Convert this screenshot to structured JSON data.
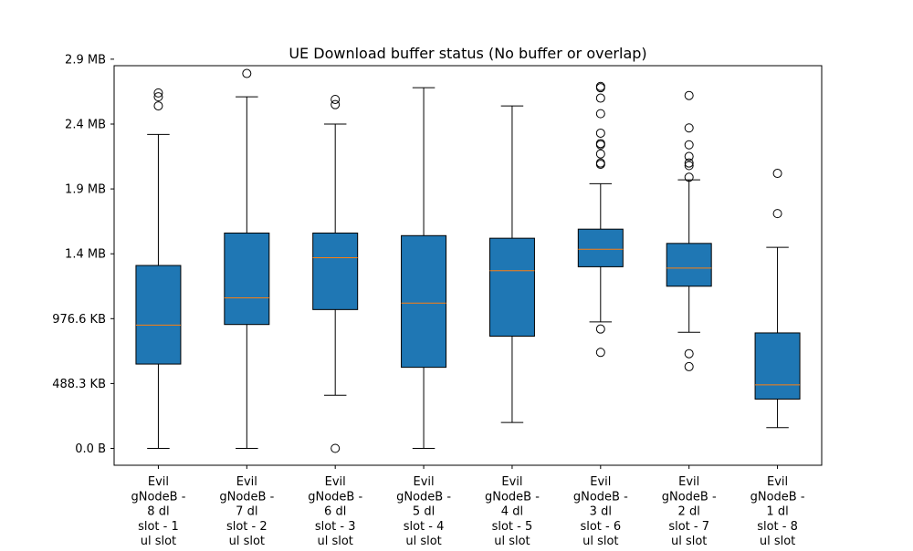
{
  "chart_data": {
    "type": "box",
    "title": "UE Download buffer status (No buffer or overlap)",
    "xlabel": "",
    "ylabel": "",
    "ylim": [
      -130000,
      2950000
    ],
    "yticks": [
      {
        "value": 0,
        "label": "0.0 B"
      },
      {
        "value": 500000,
        "label": "488.3 KB"
      },
      {
        "value": 1000000,
        "label": "976.6 KB"
      },
      {
        "value": 1500000,
        "label": "1.4 MB"
      },
      {
        "value": 2000000,
        "label": "1.9 MB"
      },
      {
        "value": 2500000,
        "label": "2.4 MB"
      },
      {
        "value": 3000000,
        "label": "2.9 MB"
      }
    ],
    "categories": [
      [
        "Evil",
        "gNodeB -",
        "8 dl",
        "slot - 1",
        "ul slot"
      ],
      [
        "Evil",
        "gNodeB -",
        "7 dl",
        "slot - 2",
        "ul slot"
      ],
      [
        "Evil",
        "gNodeB -",
        "6 dl",
        "slot - 3",
        "ul slot"
      ],
      [
        "Evil",
        "gNodeB -",
        "5 dl",
        "slot - 4",
        "ul slot"
      ],
      [
        "Evil",
        "gNodeB -",
        "4 dl",
        "slot - 5",
        "ul slot"
      ],
      [
        "Evil",
        "gNodeB -",
        "3 dl",
        "slot - 6",
        "ul slot"
      ],
      [
        "Evil",
        "gNodeB -",
        "2 dl",
        "slot - 7",
        "ul slot"
      ],
      [
        "Evil",
        "gNodeB -",
        "1 dl",
        "slot - 8",
        "ul slot"
      ]
    ],
    "boxes": [
      {
        "whisker_low": 0,
        "q1": 650000,
        "median": 950000,
        "q3": 1410000,
        "whisker_high": 2420000,
        "fliers": [
          2640000,
          2710000,
          2740000
        ]
      },
      {
        "whisker_low": 0,
        "q1": 955000,
        "median": 1160000,
        "q3": 1660000,
        "whisker_high": 2710000,
        "fliers": [
          2890000
        ]
      },
      {
        "whisker_low": 410000,
        "q1": 1070000,
        "median": 1470000,
        "q3": 1660000,
        "whisker_high": 2500000,
        "fliers": [
          0,
          2650000,
          2690000
        ]
      },
      {
        "whisker_low": 0,
        "q1": 625000,
        "median": 1120000,
        "q3": 1640000,
        "whisker_high": 2780000,
        "fliers": []
      },
      {
        "whisker_low": 200000,
        "q1": 865000,
        "median": 1370000,
        "q3": 1620000,
        "whisker_high": 2640000,
        "fliers": []
      },
      {
        "whisker_low": 975000,
        "q1": 1400000,
        "median": 1535000,
        "q3": 1690000,
        "whisker_high": 2040000,
        "fliers": [
          740000,
          920000,
          2190000,
          2200000,
          2270000,
          2340000,
          2350000,
          2430000,
          2580000,
          2700000,
          2780000,
          2790000
        ]
      },
      {
        "whisker_low": 895000,
        "q1": 1250000,
        "median": 1390000,
        "q3": 1580000,
        "whisker_high": 2070000,
        "fliers": [
          630000,
          730000,
          2090000,
          2180000,
          2200000,
          2250000,
          2340000,
          2470000,
          2720000
        ]
      },
      {
        "whisker_low": 160000,
        "q1": 380000,
        "median": 490000,
        "q3": 890000,
        "whisker_high": 1550000,
        "fliers": [
          1810000,
          2120000
        ]
      }
    ],
    "colors": {
      "box_fill": "#1f77b4",
      "median_line": "#ff7f0e",
      "edge": "#000000"
    },
    "grid": false,
    "legend": "none"
  }
}
